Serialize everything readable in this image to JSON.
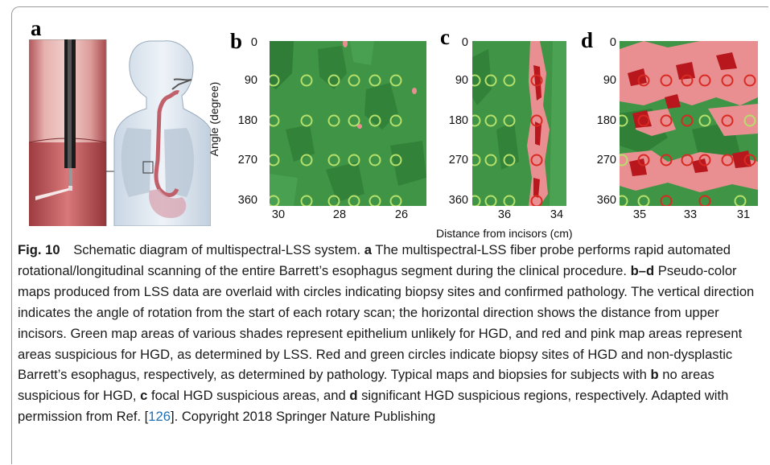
{
  "panels": {
    "a": {
      "letter": "a"
    },
    "b": {
      "letter": "b",
      "x_ticks": [
        "30",
        "28",
        "26"
      ],
      "y_ticks": [
        "0",
        "90",
        "180",
        "270",
        "360"
      ]
    },
    "c": {
      "letter": "c",
      "x_ticks": [
        "36",
        "34"
      ],
      "y_ticks": [
        "0",
        "90",
        "180",
        "270",
        "360"
      ]
    },
    "d": {
      "letter": "d",
      "x_ticks": [
        "35",
        "33",
        "31"
      ],
      "y_ticks": [
        "0",
        "90",
        "180",
        "270",
        "360"
      ]
    }
  },
  "y_axis_label": "Angle (degree)",
  "x_axis_label": "Distance from incisors (cm)",
  "colors": {
    "map_green": "#3f9446",
    "map_dark_green": "#2f7d36",
    "suspicious_pink": "#e98f92",
    "suspicious_red": "#b8181d",
    "circle_green": "#b5e06b",
    "circle_red": "#d92a22"
  },
  "caption": {
    "fig_label": "Fig. 10",
    "title": "Schematic diagram of multispectral-LSS system.",
    "a_letter": "a",
    "a_text": "The multispectral-LSS fiber probe performs rapid automated rotational/longitudinal scanning of the entire Barrett’s esophagus segment during the clinical procedure.",
    "bd_letters": "b–d",
    "bd_text": "Pseudo-color maps produced from LSS data are overlaid with circles indicating biopsy sites and confirmed pathology. The vertical direction indicates the angle of rotation from the start of each rotary scan; the horizontal direction shows the distance from upper incisors. Green map areas of various shades represent epithelium unlikely for HGD, and red and pink map areas represent areas suspicious for HGD, as determined by LSS. Red and green circles indicate biopsy sites of HGD and non-dysplastic Barrett’s esophagus, respectively, as determined by pathology. Typical maps and biopsies for subjects with",
    "b_letter": "b",
    "b_text": "no areas suspicious for HGD,",
    "c_letter": "c",
    "c_text": "focal HGD suspicious areas, and",
    "d_letter": "d",
    "d_text": "significant HGD suspicious regions, respectively. Adapted with permission from Ref. [",
    "ref": "126",
    "end_text": "]. Copyright 2018 Springer Nature Publishing"
  }
}
